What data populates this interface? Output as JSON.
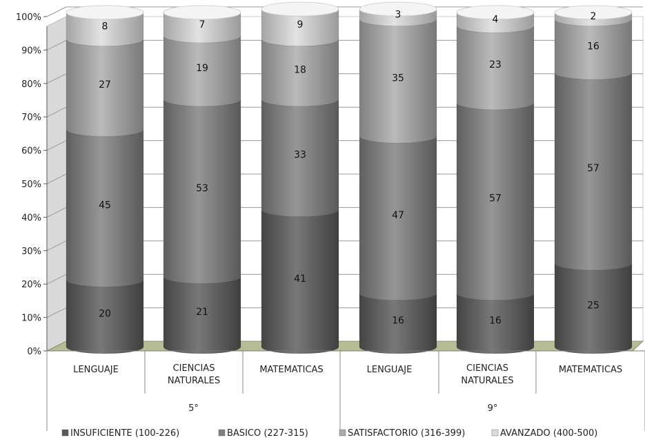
{
  "chart_data": {
    "type": "bar",
    "stacked": true,
    "percent_stacked": true,
    "title": "",
    "xlabel": "",
    "ylabel": "",
    "ylim": [
      0,
      100
    ],
    "y_ticks": [
      "0%",
      "10%",
      "20%",
      "30%",
      "40%",
      "50%",
      "60%",
      "70%",
      "80%",
      "90%",
      "100%"
    ],
    "grid": true,
    "legend_position": "bottom",
    "groups": [
      {
        "label": "5°",
        "categories": [
          "LENGUAJE",
          "CIENCIAS NATURALES",
          "MATEMATICAS"
        ]
      },
      {
        "label": "9°",
        "categories": [
          "LENGUAJE",
          "CIENCIAS NATURALES",
          "MATEMATICAS"
        ]
      }
    ],
    "categories": [
      "LENGUAJE",
      "CIENCIAS NATURALES",
      "MATEMATICAS",
      "LENGUAJE",
      "CIENCIAS NATURALES",
      "MATEMATICAS"
    ],
    "series": [
      {
        "name": "INSUFICIENTE (100-226)",
        "color": "#5a5a5a",
        "values": [
          20,
          21,
          41,
          16,
          16,
          25
        ]
      },
      {
        "name": "BASICO (227-315)",
        "color": "#7f7f7f",
        "values": [
          45,
          53,
          33,
          47,
          57,
          57
        ]
      },
      {
        "name": "SATISFACTORIO (316-399)",
        "color": "#ababab",
        "values": [
          27,
          19,
          18,
          35,
          23,
          16
        ]
      },
      {
        "name": "AVANZADO (400-500)",
        "color": "#dcdcdc",
        "values": [
          8,
          7,
          9,
          3,
          4,
          2
        ]
      }
    ]
  }
}
